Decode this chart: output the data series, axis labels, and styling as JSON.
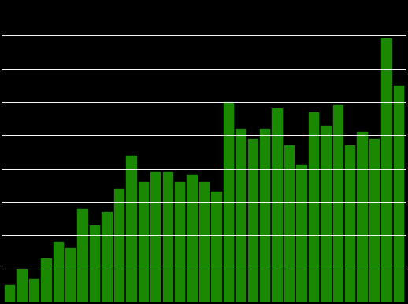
{
  "values": [
    5,
    10,
    7,
    13,
    18,
    16,
    28,
    23,
    27,
    34,
    44,
    36,
    39,
    39,
    36,
    38,
    36,
    33,
    60,
    52,
    49,
    52,
    58,
    47,
    41,
    57,
    53,
    59,
    47,
    51,
    49,
    79,
    65
  ],
  "bar_color": "#1a8800",
  "background_color": "#000000",
  "grid_color": "#ffffff",
  "ylim": [
    0,
    90
  ],
  "grid_positions": [
    10,
    20,
    30,
    40,
    50,
    60,
    70,
    80
  ],
  "grid_linewidth": 0.7,
  "bar_width": 0.8
}
